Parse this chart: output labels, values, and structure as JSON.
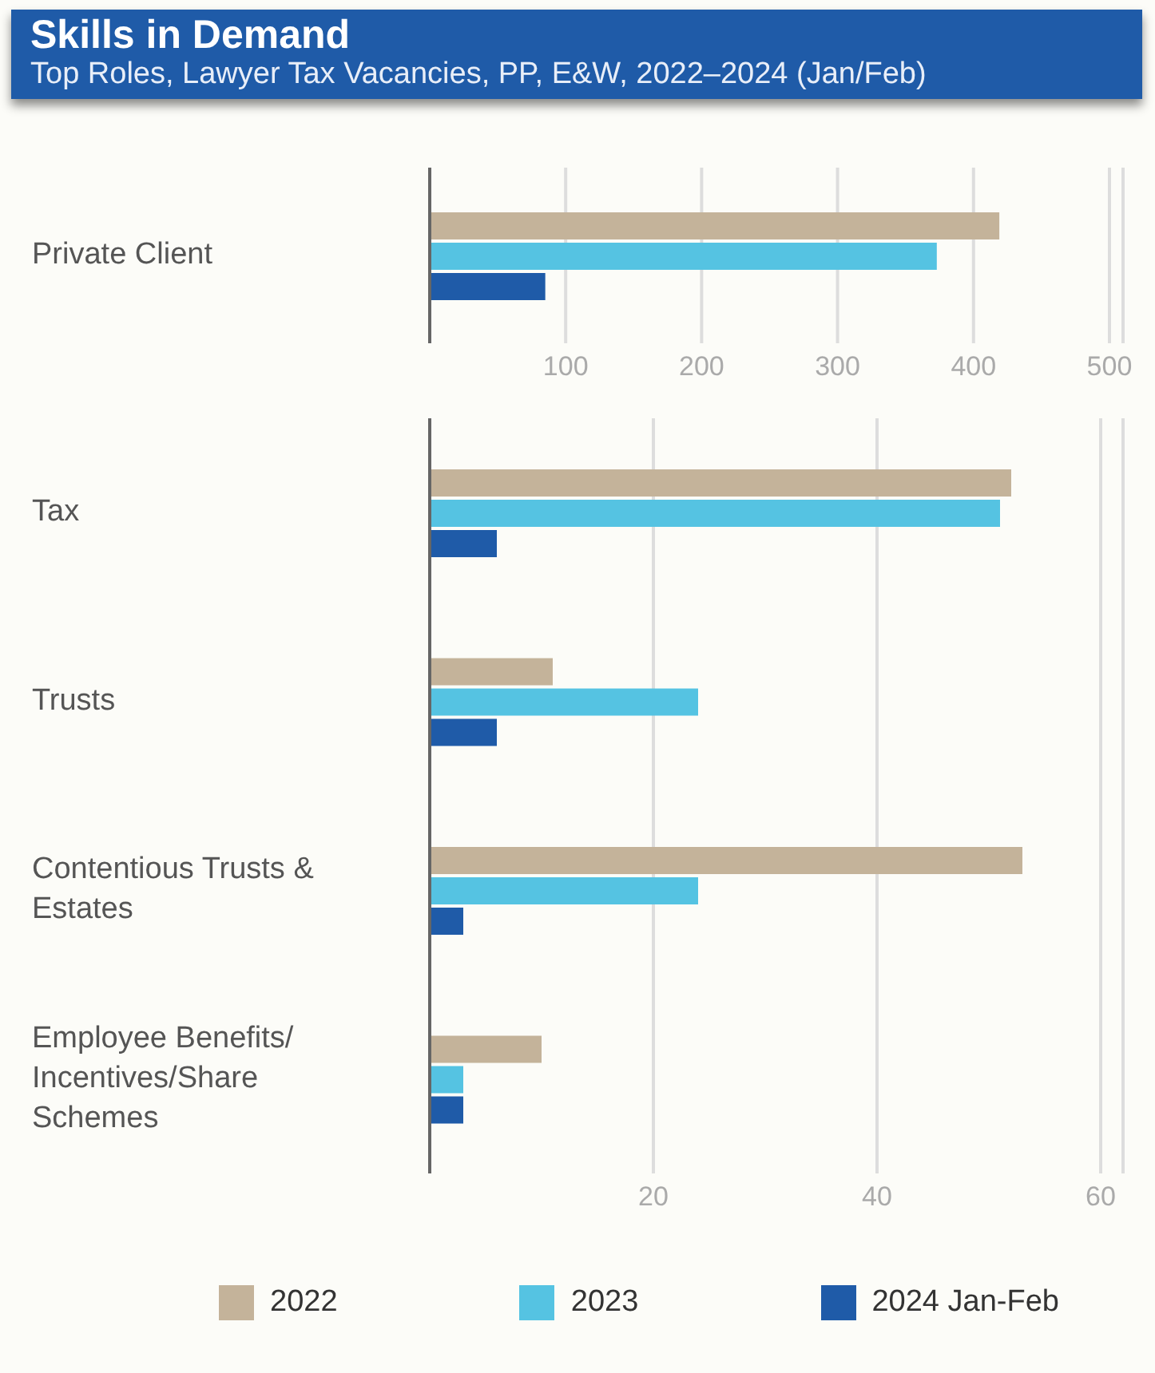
{
  "chart_data": [
    {
      "type": "bar",
      "orientation": "horizontal",
      "title": "Skills in Demand",
      "subtitle": "Top Roles, Lawyer Tax Vacancies, PP, E&W, 2022–2024 (Jan/Feb)",
      "categories": [
        "Private Client"
      ],
      "series": [
        {
          "color": "#c4b39a",
          "values": [
            419
          ]
        },
        {
          "color": "#55c3e2",
          "values": [
            373
          ]
        },
        {
          "color": "#1f5ba8",
          "values": [
            85
          ]
        }
      ],
      "xlim": [
        0,
        510
      ],
      "xticks": [
        100,
        200,
        300,
        400,
        500
      ],
      "grid": "x",
      "legend": false
    },
    {
      "type": "bar",
      "orientation": "horizontal",
      "categories": [
        "Tax",
        "Trusts",
        "Contentious Trusts & Estates",
        "Employee Benefits/Incentives/Share Schemes"
      ],
      "series": [
        {
          "name": "2022",
          "color": "#c4b39a",
          "values": [
            52,
            11,
            53,
            10
          ]
        },
        {
          "name": "2023",
          "color": "#55c3e2",
          "values": [
            51,
            24,
            24,
            3
          ]
        },
        {
          "name": "2024 Jan-Feb",
          "color": "#1f5ba8",
          "values": [
            6,
            6,
            3,
            3
          ]
        }
      ],
      "xlim": [
        0,
        62
      ],
      "xticks": [
        20,
        40,
        60
      ],
      "grid": "x",
      "legend": "bottom"
    }
  ]
}
